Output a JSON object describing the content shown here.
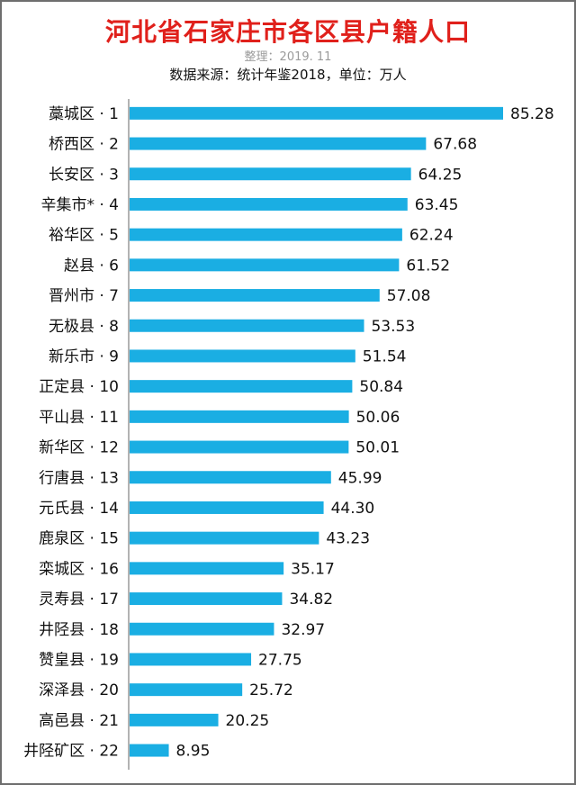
{
  "header": {
    "title": "河北省石家庄市各区县户籍人口",
    "note": "整理：2019. 11",
    "source": "数据来源：统计年鉴2018，单位：万人"
  },
  "colors": {
    "bar": "#1aaee3",
    "title": "#e0201b",
    "axis": "#9a9a9a"
  },
  "chart_data": {
    "type": "bar",
    "orientation": "horizontal",
    "title": "河北省石家庄市各区县户籍人口",
    "xlabel": "",
    "ylabel": "",
    "grid": false,
    "categories": [
      "藁城区 · 1",
      "桥西区 · 2",
      "长安区 · 3",
      "辛集市* · 4",
      "裕华区 · 5",
      "赵县 · 6",
      "晋州市 · 7",
      "无极县 · 8",
      "新乐市 · 9",
      "正定县 · 10",
      "平山县 · 11",
      "新华区 · 12",
      "行唐县 · 13",
      "元氏县 · 14",
      "鹿泉区 · 15",
      "栾城区 · 16",
      "灵寿县 · 17",
      "井陉县 · 18",
      "赞皇县 · 19",
      "深泽县 · 20",
      "高邑县 · 21",
      "井陉矿区 · 22"
    ],
    "values": [
      85.28,
      67.68,
      64.25,
      63.45,
      62.24,
      61.52,
      57.08,
      53.53,
      51.54,
      50.84,
      50.06,
      50.01,
      45.99,
      44.3,
      43.23,
      35.17,
      34.82,
      32.97,
      27.75,
      25.72,
      20.25,
      8.95
    ],
    "value_labels": [
      "85.28",
      "67.68",
      "64.25",
      "63.45",
      "62.24",
      "61.52",
      "57.08",
      "53.53",
      "51.54",
      "50.84",
      "50.06",
      "50.01",
      "45.99",
      "44.30",
      "43.23",
      "35.17",
      "34.82",
      "32.97",
      "27.75",
      "25.72",
      "20.25",
      "8.95"
    ],
    "xlim": [
      0,
      85.28
    ]
  }
}
